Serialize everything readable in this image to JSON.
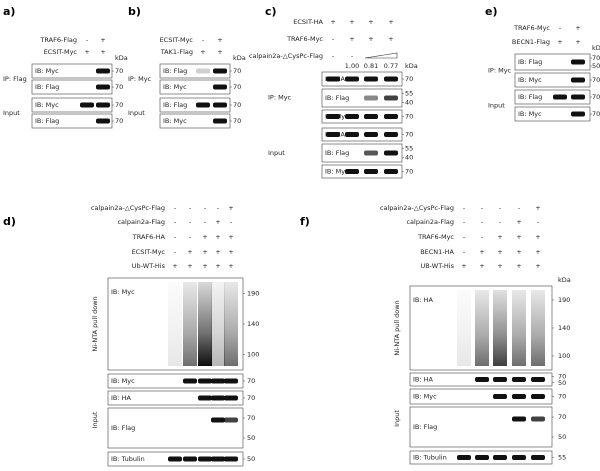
{
  "panels": [
    {
      "letter": "a)",
      "conditions": [
        {
          "label": "TRAF6-Flag",
          "signs": [
            "-",
            "+"
          ]
        },
        {
          "label": "ECSIT-Myc",
          "signs": [
            "+",
            "+"
          ]
        }
      ],
      "kda_header": "kDa",
      "groups": [
        {
          "label": "IP: Flag",
          "blots": [
            {
              "label": "IB: Myc",
              "kda": [
                "70"
              ]
            },
            {
              "label": "IB: Flag",
              "kda": [
                "70"
              ]
            }
          ]
        },
        {
          "label": "Input",
          "blots": [
            {
              "label": "IB: Myc",
              "kda": [
                "70"
              ]
            },
            {
              "label": "IB: Flag",
              "kda": [
                "70"
              ]
            }
          ]
        }
      ]
    },
    {
      "letter": "b)",
      "conditions": [
        {
          "label": "ECSIT-Myc",
          "signs": [
            "-",
            "+"
          ]
        },
        {
          "label": "TAK1-Flag",
          "signs": [
            "+",
            "+"
          ]
        }
      ],
      "kda_header": "kDa",
      "groups": [
        {
          "label": "IP: Myc",
          "blots": [
            {
              "label": "IB: Flag",
              "kda": [
                "70"
              ]
            },
            {
              "label": "IB: Myc",
              "kda": [
                "70"
              ]
            }
          ]
        },
        {
          "label": "Input",
          "blots": [
            {
              "label": "IB: Flag",
              "kda": [
                "70"
              ]
            },
            {
              "label": "IB: Myc",
              "kda": [
                "70"
              ]
            }
          ]
        }
      ]
    },
    {
      "letter": "c)",
      "conditions": [
        {
          "label": "ECSIT-HA",
          "signs": [
            "+",
            "+",
            "+",
            "+"
          ]
        },
        {
          "label": "TRAF6-Myc",
          "signs": [
            "-",
            "+",
            "+",
            "+"
          ]
        },
        {
          "label": "calpain2a-△CysPc-Flag",
          "signs": [
            "-",
            "-"
          ]
        }
      ],
      "kda_header": "kDa",
      "quantification": [
        "1.00",
        "0.81",
        "0.77"
      ],
      "groups": [
        {
          "label": "IP: Myc",
          "blots": [
            {
              "label": "IB: HA",
              "kda": [
                "70"
              ]
            },
            {
              "label": "IB: Flag",
              "kda": [
                "55",
                "40"
              ]
            },
            {
              "label": "IB: Myc",
              "kda": [
                "70"
              ]
            }
          ]
        },
        {
          "label": "Input",
          "blots": [
            {
              "label": "IB: HA",
              "kda": [
                "70"
              ]
            },
            {
              "label": "IB: Flag",
              "kda": [
                "55",
                "40"
              ]
            },
            {
              "label": "IB: Myc",
              "kda": [
                "70"
              ]
            }
          ]
        }
      ]
    },
    {
      "letter": "e)",
      "conditions": [
        {
          "label": "TRAF6-Myc",
          "signs": [
            "-",
            "+"
          ]
        },
        {
          "label": "BECN1-Flag",
          "signs": [
            "+",
            "+"
          ]
        }
      ],
      "kda_header": "kDa",
      "groups": [
        {
          "label": "IP: Myc",
          "blots": [
            {
              "label": "IB: Flag",
              "kda": [
                "70",
                "50"
              ]
            },
            {
              "label": "IB: Myc",
              "kda": [
                "70"
              ]
            }
          ]
        },
        {
          "label": "Input",
          "blots": [
            {
              "label": "IB: Flag",
              "kda": [
                "70"
              ]
            },
            {
              "label": "IB: Myc",
              "kda": [
                "70"
              ]
            }
          ]
        }
      ]
    },
    {
      "letter": "d)",
      "conditions": [
        {
          "label": "calpain2a-△CysPc-Flag",
          "signs": [
            "-",
            "-",
            "-",
            "-",
            "+"
          ]
        },
        {
          "label": "calpain2a-Flag",
          "signs": [
            "-",
            "-",
            "-",
            "+",
            "-"
          ]
        },
        {
          "label": "TRAF6-HA",
          "signs": [
            "-",
            "-",
            "+",
            "+",
            "+"
          ]
        },
        {
          "label": "ECSIT-Myc",
          "signs": [
            "-",
            "+",
            "+",
            "+",
            "+"
          ]
        },
        {
          "label": "Ub-WT-His",
          "signs": [
            "+",
            "+",
            "+",
            "+",
            "+"
          ]
        }
      ],
      "groups": [
        {
          "label": "Ni-NTA pull down",
          "blots": [
            {
              "label": "IB: Myc",
              "kda": [
                "190",
                "140",
                "100"
              ]
            }
          ]
        },
        {
          "label": "Input",
          "blots": [
            {
              "label": "IB: Myc",
              "kda": [
                "70"
              ]
            },
            {
              "label": "IB: HA",
              "kda": [
                "70"
              ]
            },
            {
              "label": "IB: Flag",
              "kda": [
                "70",
                "50"
              ]
            },
            {
              "label": "IB: Tubulin",
              "kda": [
                "50"
              ]
            }
          ]
        }
      ]
    },
    {
      "letter": "f)",
      "conditions": [
        {
          "label": "calpain2a-△CysPc-Flag",
          "signs": [
            "-",
            "-",
            "-",
            "-",
            "+"
          ]
        },
        {
          "label": "calpain2a-Flag",
          "signs": [
            "-",
            "-",
            "-",
            "+",
            "-"
          ]
        },
        {
          "label": "TRAF6-Myc",
          "signs": [
            "-",
            "-",
            "+",
            "+",
            "+"
          ]
        },
        {
          "label": "BECN1-HA",
          "signs": [
            "-",
            "+",
            "+",
            "+",
            "+"
          ]
        },
        {
          "label": "UB-WT-His",
          "signs": [
            "+",
            "+",
            "+",
            "+",
            "+"
          ]
        }
      ],
      "kda_header": "kDa",
      "groups": [
        {
          "label": "Ni-NTA pull down",
          "blots": [
            {
              "label": "IB: HA",
              "kda": [
                "190",
                "140",
                "100"
              ]
            }
          ]
        },
        {
          "label": "Input",
          "blots": [
            {
              "label": "IB: HA",
              "kda": [
                "70",
                "50"
              ]
            },
            {
              "label": "IB: Myc",
              "kda": [
                "70"
              ]
            },
            {
              "label": "IB: Flag",
              "kda": [
                "70",
                "50"
              ]
            },
            {
              "label": "IB: Tubulin",
              "kda": [
                "55"
              ]
            }
          ]
        }
      ]
    }
  ]
}
